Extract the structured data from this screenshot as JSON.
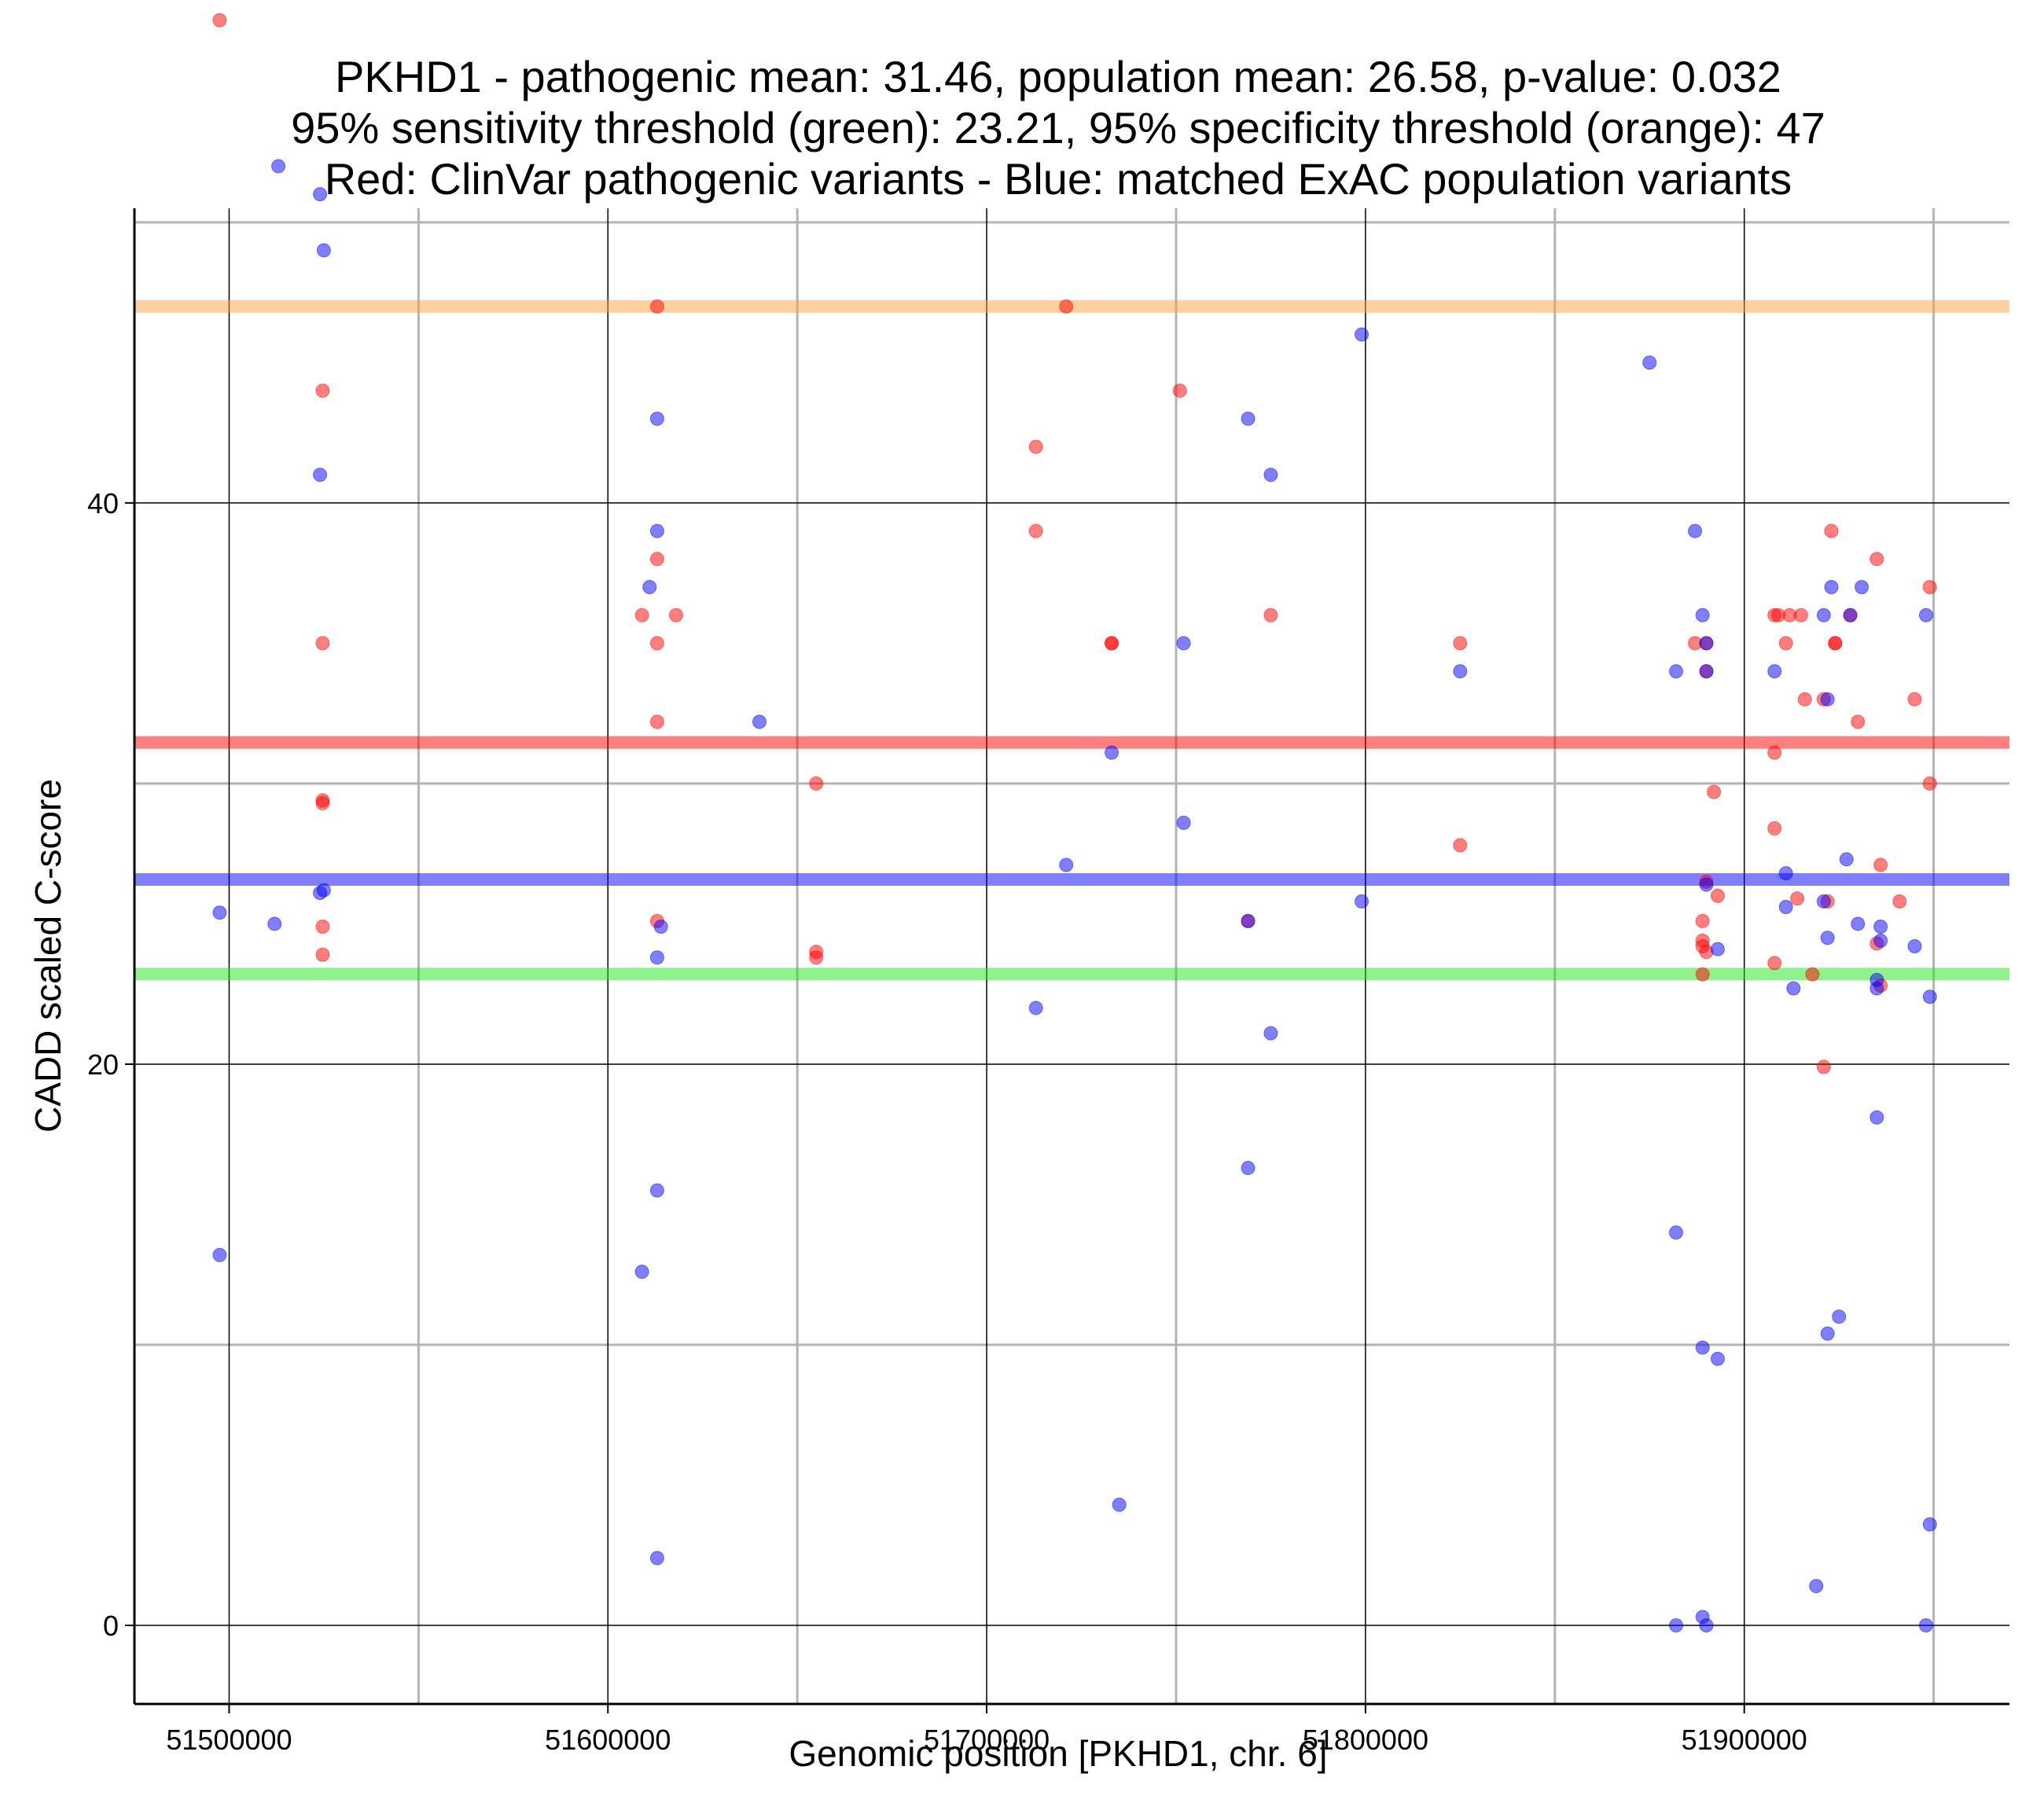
{
  "chart_data": {
    "type": "scatter",
    "title_lines": [
      "PKHD1 - pathogenic mean: 31.46, population mean: 26.58, p-value: 0.032",
      "95% sensitivity threshold (green): 23.21, 95% specificity threshold (orange): 47",
      "Red: ClinVar pathogenic variants - Blue: matched ExAC population variants"
    ],
    "xlabel": "Genomic position [PKHD1, chr. 6]",
    "ylabel": "CADD scaled C-score",
    "xlim": [
      51475000,
      51970000
    ],
    "ylim": [
      -2.8,
      50.5
    ],
    "x_major_ticks": [
      51500000,
      51600000,
      51700000,
      51800000,
      51900000
    ],
    "x_tick_labels": [
      "51500000",
      "51600000",
      "51700000",
      "51800000",
      "51900000"
    ],
    "x_minor_ticks": [
      51550000,
      51650000,
      51750000,
      51850000,
      51950000
    ],
    "y_major_ticks": [
      0,
      20,
      40
    ],
    "y_tick_labels": [
      "0",
      "20",
      "40"
    ],
    "y_minor_ticks": [
      10,
      30,
      50
    ],
    "hlines": [
      {
        "name": "specificity-threshold",
        "label": "95% specificity threshold (orange)",
        "value": 47,
        "color": "#F7A440"
      },
      {
        "name": "pathogenic-mean",
        "label": "pathogenic mean",
        "value": 31.46,
        "color": "#FF0000"
      },
      {
        "name": "population-mean",
        "label": "population mean",
        "value": 26.58,
        "color": "#0000FF"
      },
      {
        "name": "sensitivity-threshold",
        "label": "95% sensitivity threshold (green)",
        "value": 23.21,
        "color": "#22E61A"
      }
    ],
    "series": [
      {
        "name": "ClinVar pathogenic variants",
        "color": "#FF0000",
        "points": [
          [
            51497500,
            57.2
          ],
          [
            51524700,
            44
          ],
          [
            51524700,
            35
          ],
          [
            51524700,
            29.4
          ],
          [
            51524700,
            29.3
          ],
          [
            51524700,
            24.9
          ],
          [
            51524700,
            23.9
          ],
          [
            51613000,
            47
          ],
          [
            51613000,
            38
          ],
          [
            51609000,
            36
          ],
          [
            51618000,
            36
          ],
          [
            51613000,
            35
          ],
          [
            51613000,
            32.2
          ],
          [
            51613000,
            25.1
          ],
          [
            51655000,
            30
          ],
          [
            51655000,
            24
          ],
          [
            51655000,
            23.8
          ],
          [
            51713000,
            42
          ],
          [
            51713000,
            39
          ],
          [
            51721000,
            47
          ],
          [
            51733000,
            35
          ],
          [
            51733000,
            35
          ],
          [
            51751000,
            44
          ],
          [
            51769000,
            25.1
          ],
          [
            51775000,
            36
          ],
          [
            51825000,
            35
          ],
          [
            51825000,
            27.8
          ],
          [
            51887000,
            35
          ],
          [
            51890000,
            35
          ],
          [
            51890000,
            34
          ],
          [
            51892000,
            29.7
          ],
          [
            51889000,
            25.1
          ],
          [
            51889000,
            24.4
          ],
          [
            51889000,
            24.2
          ],
          [
            51890000,
            24
          ],
          [
            51893000,
            26
          ],
          [
            51889000,
            23.2
          ],
          [
            51890000,
            26.5
          ],
          [
            51908000,
            36
          ],
          [
            51909000,
            36
          ],
          [
            51912000,
            36
          ],
          [
            51915000,
            36
          ],
          [
            51911000,
            35
          ],
          [
            51908000,
            31.1
          ],
          [
            51908000,
            28.4
          ],
          [
            51914000,
            25.9
          ],
          [
            51908000,
            23.6
          ],
          [
            51918000,
            23.2
          ],
          [
            51916000,
            33
          ],
          [
            51921000,
            33
          ],
          [
            51923000,
            39
          ],
          [
            51924000,
            35
          ],
          [
            51924000,
            35
          ],
          [
            51928000,
            36
          ],
          [
            51930000,
            32.2
          ],
          [
            51922000,
            25.8
          ],
          [
            51921000,
            19.9
          ],
          [
            51935000,
            38
          ],
          [
            51936000,
            27.1
          ],
          [
            51941000,
            25.8
          ],
          [
            51935000,
            24.3
          ],
          [
            51936000,
            22.8
          ],
          [
            51945000,
            33
          ],
          [
            51949000,
            37
          ],
          [
            51949000,
            30
          ]
        ]
      },
      {
        "name": "matched ExAC population variants",
        "color": "#0000FF",
        "points": [
          [
            51513000,
            52
          ],
          [
            51524000,
            51
          ],
          [
            51525000,
            49
          ],
          [
            51524000,
            41
          ],
          [
            51525000,
            26.2
          ],
          [
            51524000,
            26.1
          ],
          [
            51497500,
            25.4
          ],
          [
            51512000,
            25
          ],
          [
            51497500,
            13.2
          ],
          [
            51613000,
            43
          ],
          [
            51613000,
            39
          ],
          [
            51611000,
            37
          ],
          [
            51614000,
            24.9
          ],
          [
            51613000,
            23.8
          ],
          [
            51613000,
            15.5
          ],
          [
            51609000,
            12.6
          ],
          [
            51613000,
            2.4
          ],
          [
            51640000,
            32.2
          ],
          [
            51721000,
            27.1
          ],
          [
            51713000,
            22
          ],
          [
            51733000,
            31.1
          ],
          [
            51735000,
            4.3
          ],
          [
            51752000,
            35
          ],
          [
            51752000,
            28.6
          ],
          [
            51769000,
            43
          ],
          [
            51775000,
            41
          ],
          [
            51769000,
            25.1
          ],
          [
            51775000,
            21.1
          ],
          [
            51769000,
            16.3
          ],
          [
            51799000,
            46
          ],
          [
            51799000,
            25.8
          ],
          [
            51825000,
            34
          ],
          [
            51875000,
            45
          ],
          [
            51882000,
            34
          ],
          [
            51887000,
            39
          ],
          [
            51889000,
            36
          ],
          [
            51890000,
            35
          ],
          [
            51890000,
            34
          ],
          [
            51890000,
            26.4
          ],
          [
            51893000,
            24.1
          ],
          [
            51882000,
            14
          ],
          [
            51889000,
            9.9
          ],
          [
            51893000,
            9.5
          ],
          [
            51889000,
            0.3
          ],
          [
            51882000,
            0
          ],
          [
            51890000,
            0
          ],
          [
            51908000,
            34
          ],
          [
            51911000,
            26.8
          ],
          [
            51911000,
            25.6
          ],
          [
            51913000,
            22.7
          ],
          [
            51919000,
            1.4
          ],
          [
            51921000,
            36
          ],
          [
            51922000,
            33
          ],
          [
            51921000,
            25.8
          ],
          [
            51922000,
            24.5
          ],
          [
            51923000,
            37
          ],
          [
            51927000,
            27.3
          ],
          [
            51931000,
            37
          ],
          [
            51928000,
            36
          ],
          [
            51930000,
            25
          ],
          [
            51935000,
            23
          ],
          [
            51935000,
            22.7
          ],
          [
            51936000,
            24.9
          ],
          [
            51936000,
            24.4
          ],
          [
            51935000,
            18.1
          ],
          [
            51922000,
            10.4
          ],
          [
            51925000,
            11
          ],
          [
            51945000,
            24.2
          ],
          [
            51948000,
            36
          ],
          [
            51949000,
            22.4
          ],
          [
            51949000,
            3.6
          ],
          [
            51948000,
            0
          ]
        ]
      }
    ]
  }
}
